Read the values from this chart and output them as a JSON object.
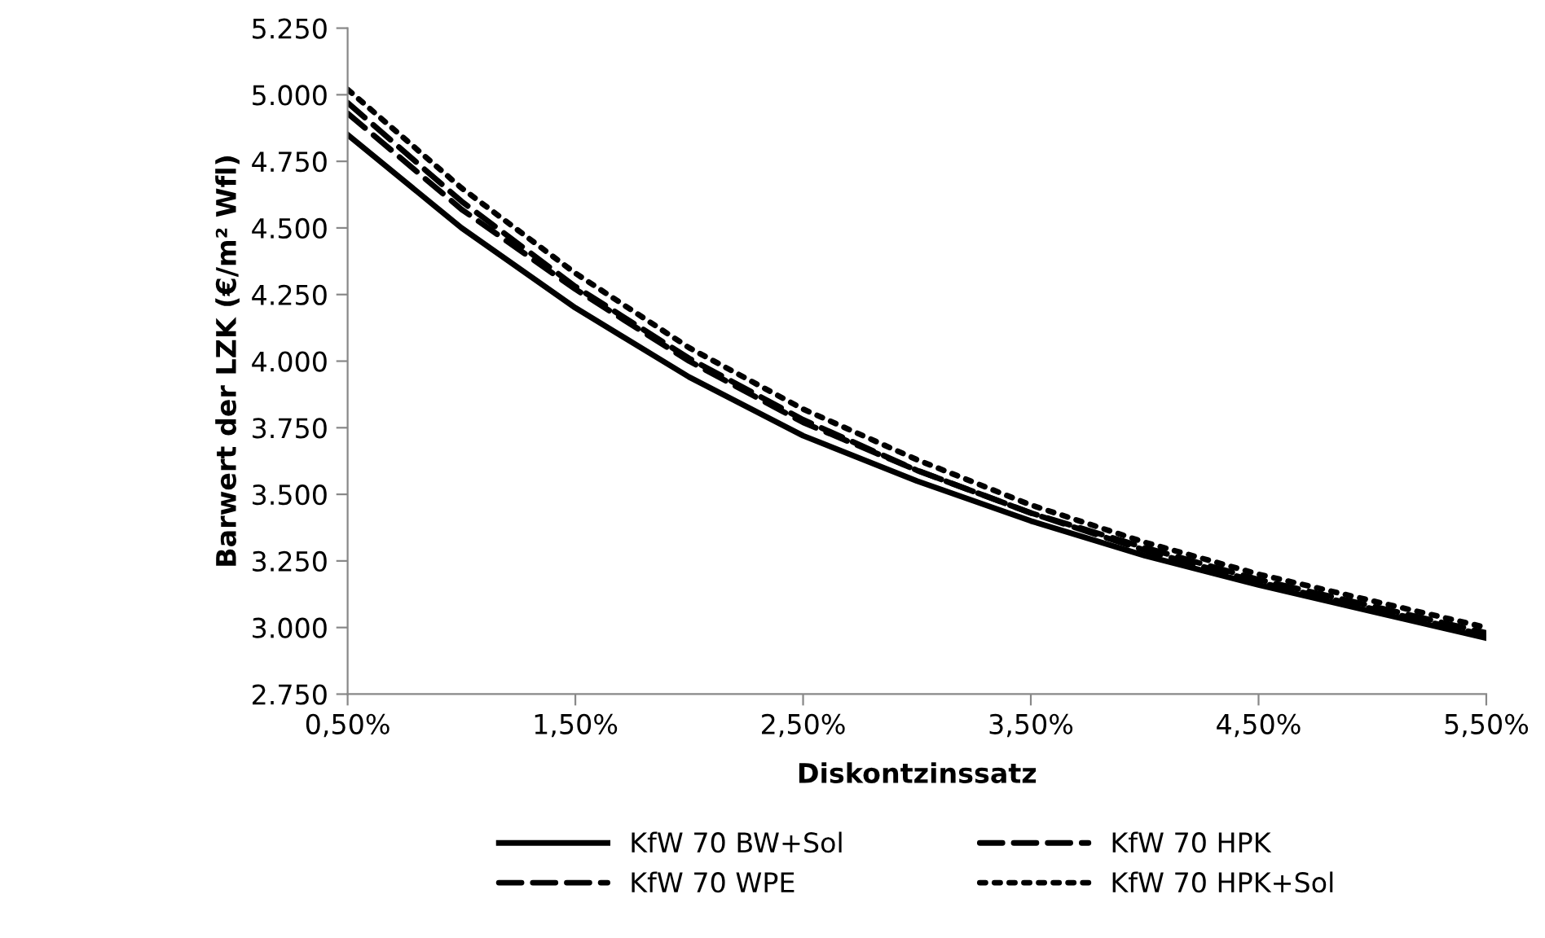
{
  "chart_data": {
    "type": "line",
    "xlabel": "Diskontzinssatz",
    "ylabel": "Barwert der LZK (€/m² Wfl)",
    "x": [
      0.5,
      1.0,
      1.5,
      2.0,
      2.5,
      3.0,
      3.5,
      4.0,
      4.5,
      5.0,
      5.5
    ],
    "xlim": [
      0.5,
      5.5
    ],
    "xticks": [
      {
        "value": 0.5,
        "label": "0,50%"
      },
      {
        "value": 1.5,
        "label": "1,50%"
      },
      {
        "value": 2.5,
        "label": "2,50%"
      },
      {
        "value": 3.5,
        "label": "3,50%"
      },
      {
        "value": 4.5,
        "label": "4,50%"
      },
      {
        "value": 5.5,
        "label": "5,50%"
      }
    ],
    "ylim": [
      2750,
      5250
    ],
    "yticks": [
      {
        "value": 2750,
        "label": "2.750"
      },
      {
        "value": 3000,
        "label": "3.000"
      },
      {
        "value": 3250,
        "label": "3.250"
      },
      {
        "value": 3500,
        "label": "3.500"
      },
      {
        "value": 3750,
        "label": "3.750"
      },
      {
        "value": 4000,
        "label": "4.000"
      },
      {
        "value": 4250,
        "label": "4.250"
      },
      {
        "value": 4500,
        "label": "4.500"
      },
      {
        "value": 4750,
        "label": "4.750"
      },
      {
        "value": 5000,
        "label": "5.000"
      },
      {
        "value": 5250,
        "label": "5.250"
      }
    ],
    "grid": false,
    "legend": "bottom",
    "marker": "none",
    "series": [
      {
        "name": "KfW 70 BW+Sol",
        "color": "#000000",
        "line_style": "solid",
        "values": [
          4850,
          4500,
          4200,
          3940,
          3720,
          3550,
          3400,
          3270,
          3160,
          3060,
          2960
        ]
      },
      {
        "name": "KfW 70 HPK",
        "color": "#000000",
        "line_style": "dashed",
        "values": [
          4970,
          4600,
          4280,
          4010,
          3780,
          3590,
          3430,
          3290,
          3170,
          3070,
          2970
        ]
      },
      {
        "name": "KfW 70 WPE",
        "color": "#000000",
        "line_style": "dashed",
        "values": [
          4930,
          4570,
          4270,
          4000,
          3770,
          3590,
          3430,
          3300,
          3180,
          3080,
          2980
        ]
      },
      {
        "name": "KfW 70 HPK+Sol",
        "color": "#000000",
        "line_style": "dotted",
        "values": [
          5020,
          4650,
          4330,
          4050,
          3820,
          3630,
          3460,
          3320,
          3200,
          3100,
          3000
        ]
      }
    ]
  }
}
